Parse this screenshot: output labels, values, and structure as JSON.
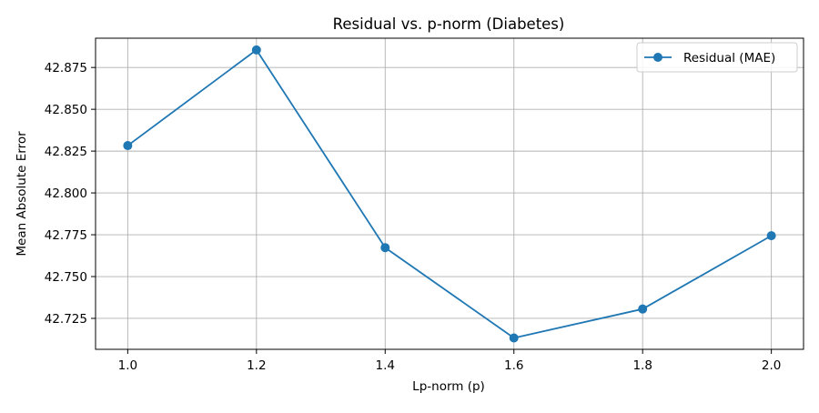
{
  "chart_data": {
    "type": "line",
    "title": "Residual vs. p-norm (Diabetes)",
    "xlabel": "Lp-norm (p)",
    "ylabel": "Mean Absolute Error",
    "x": [
      1.0,
      1.2,
      1.4,
      1.6,
      1.8,
      2.0
    ],
    "series": [
      {
        "name": "Residual (MAE)",
        "values": [
          42.8283,
          42.8855,
          42.7673,
          42.7133,
          42.7306,
          42.7744
        ],
        "color": "#1f77b4",
        "marker": "circle"
      }
    ],
    "xlim": [
      0.95,
      2.05
    ],
    "ylim": [
      42.7065,
      42.8925
    ],
    "xticks": [
      1.0,
      1.2,
      1.4,
      1.6,
      1.8,
      2.0
    ],
    "xtick_labels": [
      "1.0",
      "1.2",
      "1.4",
      "1.6",
      "1.8",
      "2.0"
    ],
    "yticks": [
      42.725,
      42.75,
      42.775,
      42.8,
      42.825,
      42.85,
      42.875
    ],
    "ytick_labels": [
      "42.725",
      "42.750",
      "42.775",
      "42.800",
      "42.825",
      "42.850",
      "42.875"
    ],
    "grid": true,
    "legend_position": "top-right"
  }
}
